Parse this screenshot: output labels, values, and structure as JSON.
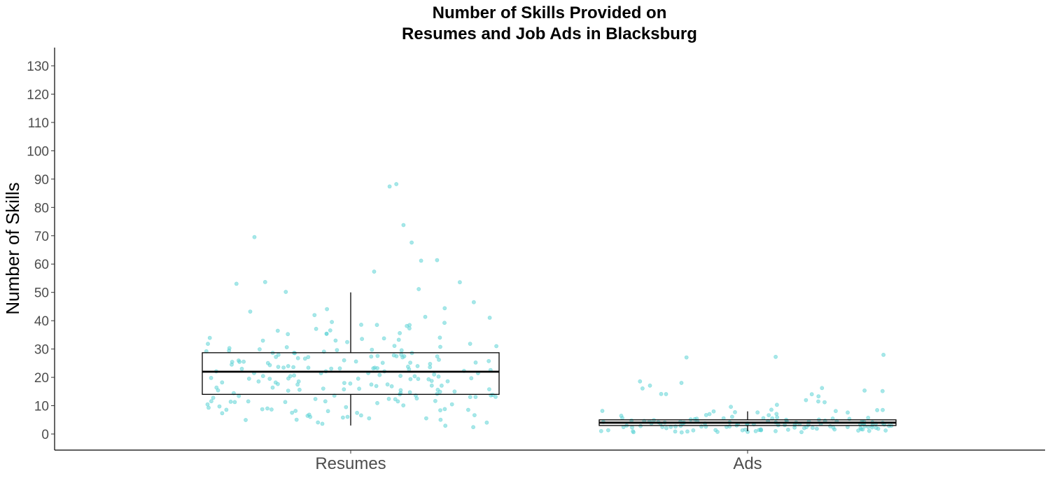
{
  "chart_data": {
    "type": "boxplot",
    "title": [
      "Number of Skills Provided on",
      "Resumes and Job Ads in Blacksburg"
    ],
    "ylabel": "Number of Skills",
    "xlabel": "",
    "ylim": [
      -5,
      136
    ],
    "yticks": [
      0,
      10,
      20,
      30,
      40,
      50,
      60,
      70,
      80,
      90,
      100,
      110,
      120,
      130
    ],
    "grid": false,
    "categories": [
      "Resumes",
      "Ads"
    ],
    "point_color": "#5ed3d6",
    "box_color": "#000000",
    "boxes": [
      {
        "category": "Resumes",
        "q1": 14,
        "median": 22,
        "q3": 28.7,
        "whisker_low": 3,
        "whisker_high": 50
      },
      {
        "category": "Ads",
        "q1": 3,
        "median": 4,
        "q3": 5,
        "whisker_low": 1,
        "whisker_high": 8
      }
    ],
    "points": [
      {
        "category": "Resumes",
        "values": [
          88,
          88,
          74,
          70,
          68,
          61,
          61,
          57,
          54,
          54,
          53,
          51,
          50,
          47,
          44,
          44,
          43,
          42,
          41,
          41,
          40,
          39,
          39,
          38,
          38,
          38,
          37,
          37,
          36,
          36,
          36,
          35,
          35,
          35,
          34,
          34,
          34,
          34,
          33,
          33,
          33,
          33,
          32,
          32,
          31,
          31,
          31,
          31,
          30,
          30,
          30,
          30,
          30,
          30,
          29,
          29,
          29,
          29,
          29,
          28,
          28,
          28,
          28,
          28,
          28,
          28,
          27,
          27,
          27,
          27,
          27,
          27,
          26,
          26,
          26,
          26,
          26,
          26,
          26,
          25,
          25,
          25,
          25,
          25,
          25,
          25,
          25,
          24,
          24,
          24,
          24,
          24,
          24,
          24,
          24,
          23,
          23,
          23,
          23,
          23,
          23,
          23,
          23,
          22,
          22,
          22,
          22,
          22,
          22,
          22,
          22,
          21,
          21,
          21,
          21,
          21,
          21,
          21,
          20,
          20,
          20,
          20,
          20,
          20,
          20,
          20,
          19,
          19,
          19,
          19,
          19,
          19,
          18,
          18,
          18,
          18,
          18,
          18,
          18,
          17,
          17,
          17,
          17,
          17,
          17,
          17,
          16,
          16,
          16,
          16,
          16,
          16,
          16,
          15,
          15,
          15,
          15,
          15,
          15,
          15,
          14,
          14,
          14,
          14,
          14,
          14,
          13,
          13,
          13,
          13,
          13,
          13,
          13,
          12,
          12,
          12,
          12,
          12,
          12,
          11,
          11,
          11,
          11,
          11,
          11,
          10,
          10,
          10,
          10,
          10,
          9,
          9,
          9,
          9,
          9,
          8,
          8,
          8,
          8,
          8,
          8,
          7,
          7,
          7,
          7,
          7,
          6,
          6,
          6,
          6,
          6,
          6,
          5,
          5,
          5,
          4,
          4,
          4,
          3,
          3
        ]
      },
      {
        "category": "Ads",
        "values": [
          27.5,
          27.5,
          27,
          19,
          17.5,
          16.5,
          16.5,
          16,
          15,
          15,
          14,
          14,
          14,
          13.5,
          12.5,
          11,
          11,
          10,
          9,
          8.5,
          8.5,
          8,
          8,
          8,
          8,
          7.5,
          7,
          7,
          7,
          7,
          6.5,
          6.5,
          6,
          6,
          6,
          6,
          6,
          6,
          5.5,
          5.5,
          5.5,
          5,
          5,
          5,
          5,
          5,
          5,
          5,
          5,
          5,
          5,
          4.5,
          4.5,
          4.5,
          4.5,
          4.5,
          4.5,
          4.5,
          4.5,
          4,
          4,
          4,
          4,
          4,
          4,
          4,
          4,
          4,
          4,
          4,
          4,
          4,
          4,
          4,
          4,
          3.5,
          3.5,
          3.5,
          3.5,
          3.5,
          3.5,
          3.5,
          3.5,
          3.5,
          3.5,
          3,
          3,
          3,
          3,
          3,
          3,
          3,
          3,
          3,
          3,
          3,
          3,
          3,
          3,
          2.5,
          2.5,
          2.5,
          2.5,
          2.5,
          2.5,
          2.5,
          2.5,
          2.5,
          2,
          2,
          2,
          2,
          2,
          2,
          2,
          2,
          2,
          2,
          2,
          2,
          1.5,
          1.5,
          1.5,
          1.5,
          1.5,
          1.5,
          1.5,
          1.5,
          1,
          1,
          1,
          1,
          1,
          1,
          1,
          1,
          1,
          1,
          1,
          1,
          1,
          1,
          1,
          1,
          1,
          1
        ]
      }
    ]
  }
}
